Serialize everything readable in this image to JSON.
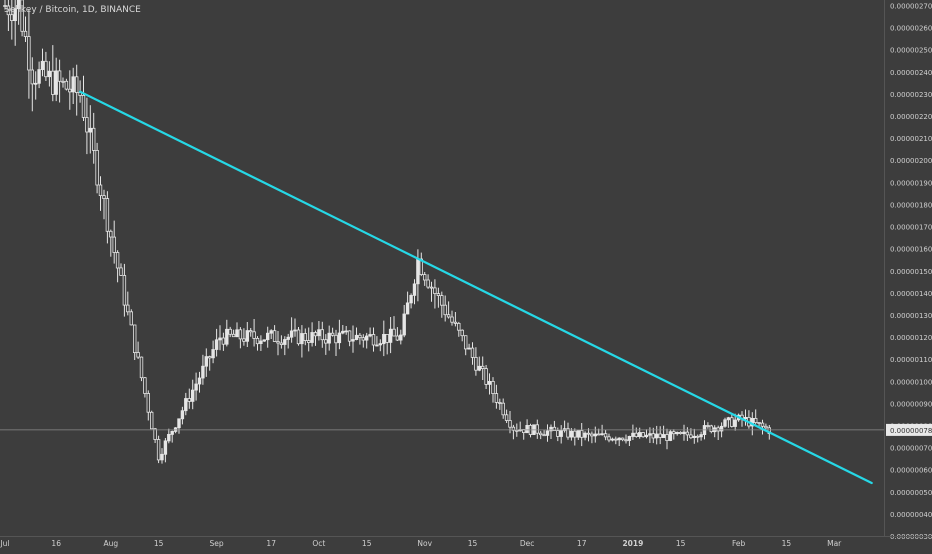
{
  "chart_data": {
    "type": "candlestick",
    "title": "Selfkey / Bitcoin, 1D, BINANCE",
    "x_axis_labels": [
      "Jul",
      "16",
      "Aug",
      "15",
      "Sep",
      "17",
      "Oct",
      "15",
      "Nov",
      "15",
      "Dec",
      "17",
      "2019",
      "15",
      "Feb",
      "15",
      "Mar"
    ],
    "y_axis_labels": [
      "0.00000270",
      "0.00000260",
      "0.00000250",
      "0.00000240",
      "0.00000230",
      "0.00000220",
      "0.00000210",
      "0.00000200",
      "0.00000190",
      "0.00000180",
      "0.00000170",
      "0.00000160",
      "0.00000150",
      "0.00000140",
      "0.00000130",
      "0.00000120",
      "0.00000110",
      "0.00000100",
      "0.00000090",
      "0.00000080",
      "0.00000070",
      "0.00000060",
      "0.00000050",
      "0.00000040",
      "0.00000030"
    ],
    "ylim": [
      3e-07,
      2.725e-06
    ],
    "x_range": [
      "2018-07-01",
      "2019-03-03"
    ],
    "current_price_label": "0.00000078",
    "trendline": {
      "color": "#26d8e6",
      "start": {
        "date": "2018-07-23",
        "price": 2.31e-06
      },
      "end": {
        "date": "2019-03-12",
        "price": 5.4e-07
      }
    },
    "key_points": [
      {
        "date": "2018-07-05",
        "price": 2.7e-06
      },
      {
        "date": "2018-07-09",
        "price": 2.4e-06
      },
      {
        "date": "2018-07-23",
        "price": 2.3e-06
      },
      {
        "date": "2018-08-15",
        "price": 6.6e-07
      },
      {
        "date": "2018-09-02",
        "price": 1.2e-06
      },
      {
        "date": "2018-10-25",
        "price": 1.2e-06
      },
      {
        "date": "2018-10-30",
        "price": 1.55e-06
      },
      {
        "date": "2018-11-04",
        "price": 1.4e-06
      },
      {
        "date": "2018-11-27",
        "price": 7.9e-07
      },
      {
        "date": "2018-12-20",
        "price": 7.5e-07
      },
      {
        "date": "2019-01-15",
        "price": 7.5e-07
      },
      {
        "date": "2019-02-02",
        "price": 8.3e-07
      },
      {
        "date": "2019-02-10",
        "price": 7.8e-07
      }
    ],
    "colors": {
      "background": "#3d3d3d",
      "candle": "#e6e6e6",
      "axis_text": "#d0d0d0",
      "price_badge_bg": "#e8e8e8",
      "price_badge_text": "#333333"
    }
  }
}
